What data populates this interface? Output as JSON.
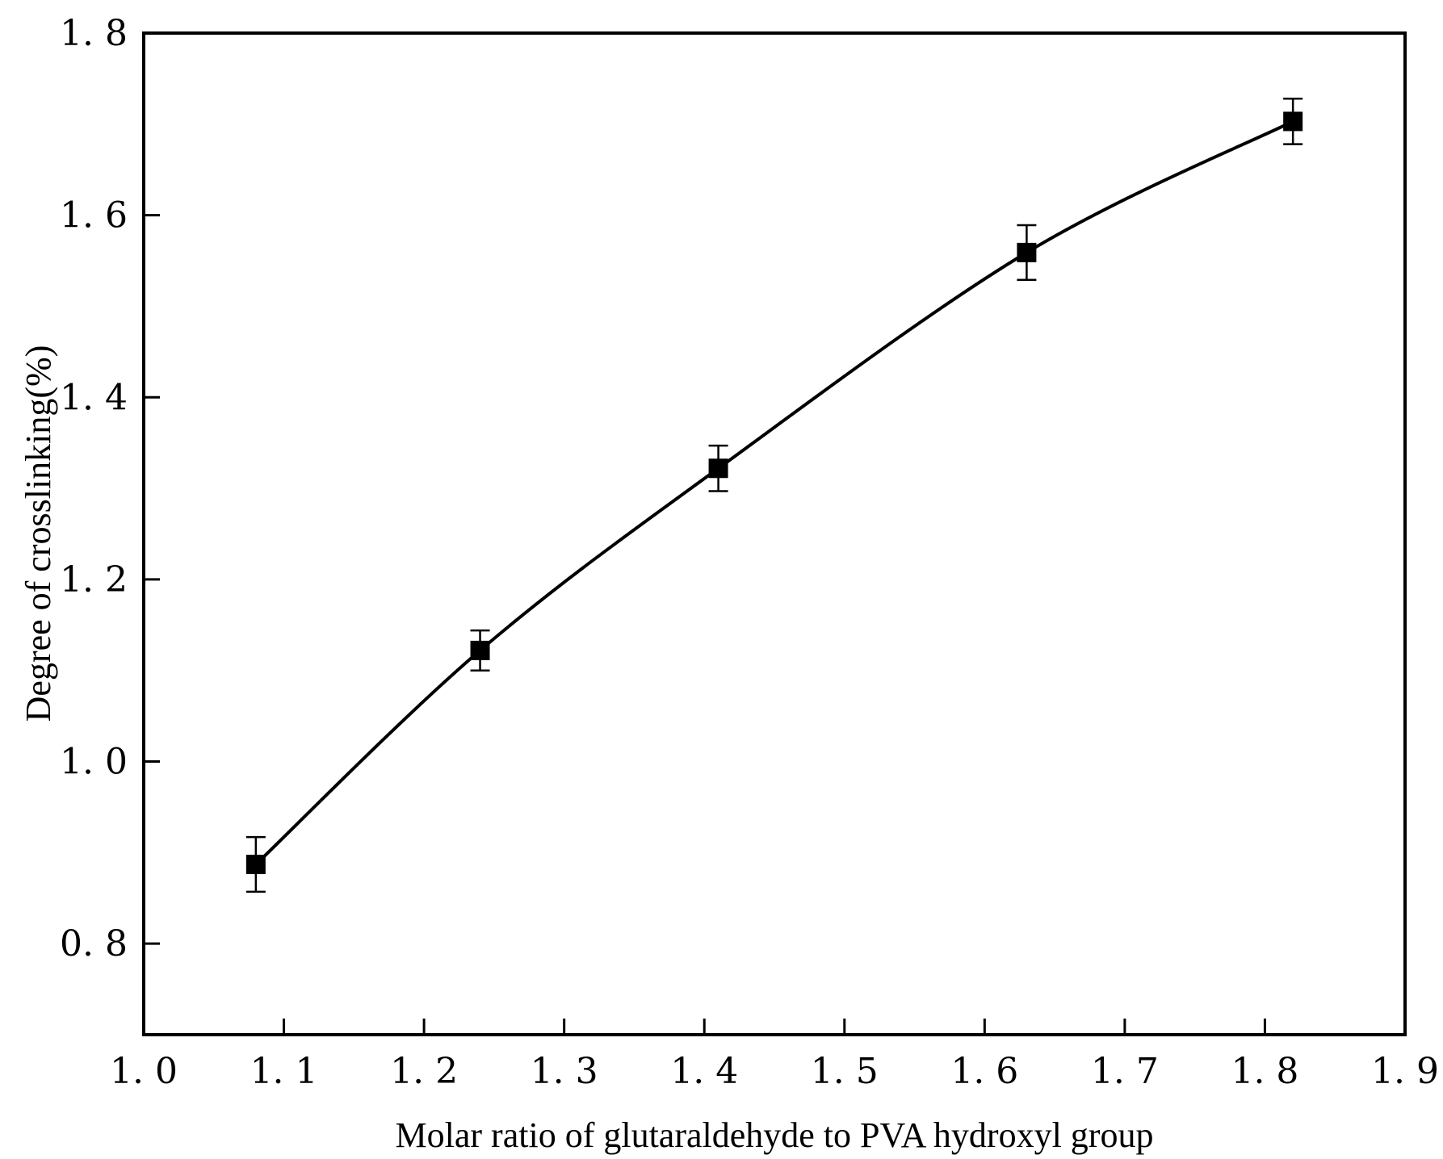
{
  "chart_data": {
    "type": "line",
    "title": "",
    "xlabel": "Molar ratio of glutaraldehyde to PVA hydroxyl group",
    "ylabel": "Degree of crosslinking(%)",
    "xlim": [
      1.0,
      1.9
    ],
    "ylim": [
      0.7,
      1.8
    ],
    "xticks": [
      1.0,
      1.1,
      1.2,
      1.3,
      1.4,
      1.5,
      1.6,
      1.7,
      1.8,
      1.9
    ],
    "xtick_labels": [
      "1. 0",
      "1. 1",
      "1. 2",
      "1. 3",
      "1. 4",
      "1. 5",
      "1. 6",
      "1. 7",
      "1. 8",
      "1. 9"
    ],
    "yticks": [
      0.8,
      1.0,
      1.2,
      1.4,
      1.6,
      1.8
    ],
    "ytick_labels": [
      "0. 8",
      "1. 0",
      "1. 2",
      "1. 4",
      "1. 6",
      "1. 8"
    ],
    "grid": false,
    "legend": "none",
    "marker": "square",
    "line_style": "smooth",
    "color": "#000000",
    "series": [
      {
        "x": [
          1.08,
          1.24,
          1.41,
          1.63,
          1.82
        ],
        "y": [
          0.887,
          1.122,
          1.322,
          1.559,
          1.703
        ],
        "error": [
          0.03,
          0.022,
          0.025,
          0.03,
          0.025
        ]
      }
    ]
  }
}
